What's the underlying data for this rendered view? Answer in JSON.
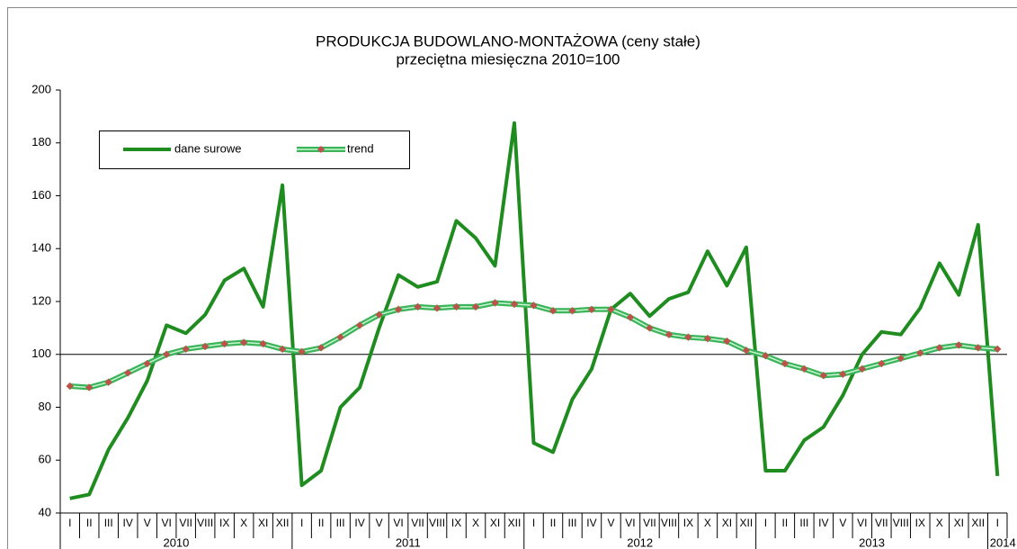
{
  "chart_data": {
    "type": "line",
    "title": "PRODUKCJA BUDOWLANO-MONTAŻOWA (ceny stałe)",
    "subtitle": "przeciętna miesięczna 2010=100",
    "categories": [
      "I",
      "II",
      "III",
      "IV",
      "V",
      "VI",
      "VII",
      "VIII",
      "IX",
      "X",
      "XI",
      "XII",
      "I",
      "II",
      "III",
      "IV",
      "V",
      "VI",
      "VII",
      "VIII",
      "IX",
      "X",
      "XI",
      "XII",
      "I",
      "II",
      "III",
      "IV",
      "V",
      "VI",
      "VII",
      "VIII",
      "IX",
      "X",
      "XI",
      "XII",
      "I",
      "II",
      "III",
      "IV",
      "V",
      "VI",
      "VII",
      "VIII",
      "IX",
      "X",
      "XI",
      "XII",
      "I"
    ],
    "years": [
      "2010",
      "2011",
      "2012",
      "2013",
      "2014"
    ],
    "series": [
      {
        "name": "dane surowe",
        "color": "#1e8c1e",
        "values": [
          45.5,
          47,
          64,
          76,
          90,
          111,
          108,
          115,
          128,
          132.5,
          118,
          164,
          50.5,
          56,
          80,
          87.5,
          110,
          130,
          125.5,
          127.5,
          150.5,
          144,
          133.5,
          187.5,
          66.5,
          63,
          83,
          94.5,
          117,
          123,
          114.5,
          121,
          123.5,
          139,
          126,
          140.5,
          56,
          56,
          67.5,
          72.5,
          84.5,
          100,
          108.5,
          107.5,
          117.5,
          134.5,
          122.5,
          149,
          54
        ]
      },
      {
        "name": "trend",
        "color": "#3cb45a",
        "marker_color": "#c0504d",
        "values": [
          88,
          87.5,
          89.5,
          93,
          96.5,
          100,
          102,
          103,
          104,
          104.5,
          104,
          102,
          101,
          102.5,
          106.5,
          111,
          115,
          117,
          118,
          117.5,
          118,
          118,
          119.5,
          119,
          118.5,
          116.5,
          116.5,
          117,
          117,
          114,
          110,
          107.5,
          106.5,
          106,
          105,
          101.5,
          99.5,
          96.5,
          94.5,
          92,
          92.5,
          94.5,
          96.5,
          98.5,
          100.5,
          102.5,
          103.5,
          102.5,
          102
        ]
      }
    ],
    "ylim": [
      40,
      200
    ],
    "yticks": [
      40,
      60,
      80,
      100,
      120,
      140,
      160,
      180,
      200
    ],
    "reference_line": 100,
    "legend": "upper left"
  }
}
